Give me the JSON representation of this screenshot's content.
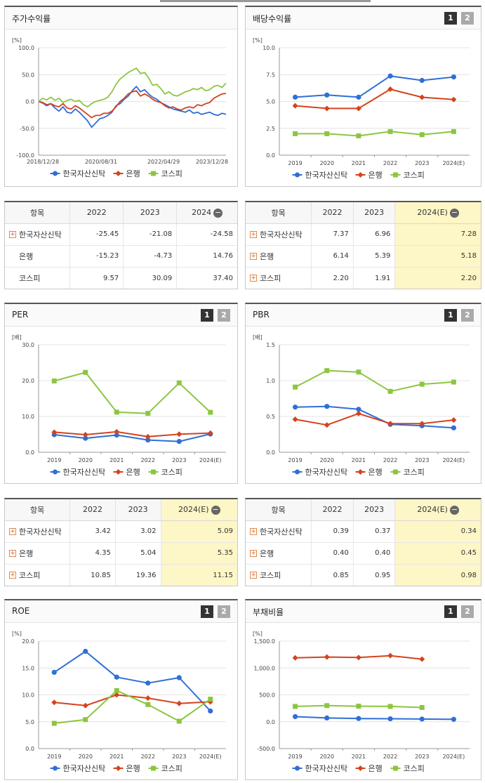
{
  "topbar": {
    "note": ""
  },
  "panels": [
    {
      "id": "p1",
      "title": "주가수익률",
      "unit": "[%]",
      "pages": [],
      "chart_data": {
        "type": "line",
        "title": "주가수익률",
        "ylabel": "[%]",
        "ylim": [
          -100,
          100
        ],
        "yticks": [
          "100.0",
          "50.0",
          "0.0",
          "-50.0",
          "-100.0"
        ],
        "xticks": [
          "2018/12/28",
          "2020/08/31",
          "2022/04/29",
          "2023/12/28"
        ],
        "series": [
          {
            "name": "한국자산신탁",
            "color": "#2f6fd6",
            "values": [
              0,
              -3,
              -8,
              -4,
              -12,
              -18,
              -10,
              -20,
              -22,
              -14,
              -20,
              -28,
              -36,
              -48,
              -40,
              -32,
              -30,
              -26,
              -20,
              -8,
              -4,
              4,
              10,
              20,
              28,
              18,
              22,
              14,
              8,
              4,
              -2,
              -6,
              -10,
              -14,
              -16,
              -18,
              -20,
              -16,
              -22,
              -20,
              -24,
              -22,
              -20,
              -24,
              -26,
              -22,
              -24
            ]
          },
          {
            "name": "은행",
            "color": "#d4431e",
            "values": [
              0,
              -2,
              -6,
              -4,
              -8,
              -10,
              -4,
              -12,
              -14,
              -8,
              -12,
              -18,
              -24,
              -30,
              -26,
              -26,
              -22,
              -22,
              -18,
              -10,
              0,
              6,
              14,
              18,
              20,
              10,
              14,
              10,
              4,
              0,
              -2,
              -8,
              -12,
              -10,
              -14,
              -16,
              -12,
              -10,
              -12,
              -6,
              -8,
              -4,
              -2,
              6,
              10,
              14,
              15
            ]
          },
          {
            "name": "코스피",
            "color": "#8cc63f",
            "values": [
              0,
              6,
              3,
              8,
              2,
              6,
              -2,
              2,
              4,
              0,
              2,
              -6,
              -10,
              -4,
              0,
              2,
              4,
              8,
              18,
              32,
              42,
              48,
              54,
              58,
              62,
              52,
              54,
              44,
              30,
              32,
              24,
              14,
              18,
              12,
              10,
              14,
              18,
              20,
              24,
              22,
              26,
              20,
              22,
              28,
              30,
              26,
              34
            ]
          }
        ]
      }
    },
    {
      "id": "p2",
      "title": "배당수익률",
      "unit": "[%]",
      "pages": [
        "1",
        "2"
      ],
      "chart_data": {
        "type": "line",
        "title": "배당수익률",
        "ylabel": "[%]",
        "ylim": [
          0,
          10
        ],
        "yticks": [
          "10.0",
          "7.5",
          "5.0",
          "2.5",
          "0.0"
        ],
        "categories": [
          "2019",
          "2020",
          "2021",
          "2022",
          "2023",
          "2024(E)"
        ],
        "series": [
          {
            "name": "한국자산신탁",
            "color": "#2f6fd6",
            "values": [
              5.4,
              5.6,
              5.4,
              7.37,
              6.96,
              7.28
            ]
          },
          {
            "name": "은행",
            "color": "#d4431e",
            "values": [
              4.6,
              4.35,
              4.35,
              6.14,
              5.39,
              5.18
            ]
          },
          {
            "name": "코스피",
            "color": "#8cc63f",
            "values": [
              2.0,
              2.0,
              1.8,
              2.2,
              1.91,
              2.2
            ]
          }
        ]
      }
    },
    {
      "id": "p3",
      "title": "PER",
      "unit": "[배]",
      "pages": [
        "1",
        "2"
      ],
      "chart_data": {
        "type": "line",
        "title": "PER",
        "ylabel": "[배]",
        "ylim": [
          0,
          30
        ],
        "yticks": [
          "30.0",
          "20.0",
          "10.0",
          "0.0"
        ],
        "categories": [
          "2019",
          "2020",
          "2021",
          "2022",
          "2023",
          "2024(E)"
        ],
        "series": [
          {
            "name": "한국자산신탁",
            "color": "#2f6fd6",
            "values": [
              4.9,
              3.9,
              4.8,
              3.42,
              3.02,
              5.09
            ]
          },
          {
            "name": "은행",
            "color": "#d4431e",
            "values": [
              5.6,
              4.9,
              5.7,
              4.35,
              5.04,
              5.35
            ]
          },
          {
            "name": "코스피",
            "color": "#8cc63f",
            "values": [
              19.9,
              22.3,
              11.2,
              10.85,
              19.36,
              11.15
            ]
          }
        ]
      }
    },
    {
      "id": "p4",
      "title": "PBR",
      "unit": "[배]",
      "pages": [
        "1",
        "2"
      ],
      "chart_data": {
        "type": "line",
        "title": "PBR",
        "ylabel": "[배]",
        "ylim": [
          0,
          1.5
        ],
        "yticks": [
          "1.5",
          "1.0",
          "0.5",
          "0.0"
        ],
        "categories": [
          "2019",
          "2020",
          "2021",
          "2022",
          "2023",
          "2024(E)"
        ],
        "series": [
          {
            "name": "한국자산신탁",
            "color": "#2f6fd6",
            "values": [
              0.63,
              0.64,
              0.6,
              0.39,
              0.37,
              0.34
            ]
          },
          {
            "name": "은행",
            "color": "#d4431e",
            "values": [
              0.46,
              0.38,
              0.54,
              0.4,
              0.4,
              0.45
            ]
          },
          {
            "name": "코스피",
            "color": "#8cc63f",
            "values": [
              0.91,
              1.14,
              1.12,
              0.85,
              0.95,
              0.98
            ]
          }
        ]
      }
    },
    {
      "id": "p5",
      "title": "ROE",
      "unit": "[%]",
      "pages": [
        "1",
        "2"
      ],
      "chart_data": {
        "type": "line",
        "title": "ROE",
        "ylabel": "[%]",
        "ylim": [
          0,
          20
        ],
        "yticks": [
          "20.0",
          "15.0",
          "10.0",
          "5.0",
          "0.0"
        ],
        "categories": [
          "2019",
          "2020",
          "2021",
          "2022",
          "2023",
          "2024(E)"
        ],
        "series": [
          {
            "name": "한국자산신탁",
            "color": "#2f6fd6",
            "values": [
              14.2,
              18.1,
              13.3,
              12.2,
              13.2,
              7.0
            ]
          },
          {
            "name": "은행",
            "color": "#d4431e",
            "values": [
              8.6,
              8.0,
              10.0,
              9.4,
              8.4,
              8.7
            ]
          },
          {
            "name": "코스피",
            "color": "#8cc63f",
            "values": [
              4.7,
              5.4,
              10.8,
              8.2,
              5.1,
              9.2
            ]
          }
        ]
      }
    },
    {
      "id": "p6",
      "title": "부채비율",
      "unit": "[%]",
      "pages": [
        "1",
        "2"
      ],
      "chart_data": {
        "type": "line",
        "title": "부채비율",
        "ylabel": "[%]",
        "ylim": [
          -500,
          1500
        ],
        "yticks": [
          "1,500.0",
          "1,000.0",
          "500.0",
          "0.0",
          "-500.0"
        ],
        "categories": [
          "2019",
          "2020",
          "2021",
          "2022",
          "2023",
          "2024(E)"
        ],
        "series": [
          {
            "name": "한국자산신탁",
            "color": "#2f6fd6",
            "values": [
              95,
              70,
              60,
              55,
              50,
              45
            ]
          },
          {
            "name": "은행",
            "color": "#d4431e",
            "values": [
              1190,
              1205,
              1195,
              1230,
              1165,
              null
            ]
          },
          {
            "name": "코스피",
            "color": "#8cc63f",
            "values": [
              285,
              300,
              290,
              285,
              265,
              null
            ]
          }
        ]
      }
    }
  ],
  "tables": [
    {
      "id": "t1",
      "headers": [
        "항목",
        "2022",
        "2023",
        "2024"
      ],
      "minus": true,
      "hlLast": false,
      "rows": [
        {
          "name": "한국자산신탁",
          "plus": true,
          "vals": [
            "-25.45",
            "-21.08",
            "-24.58"
          ]
        },
        {
          "name": "은행",
          "plus": false,
          "vals": [
            "-15.23",
            "-4.73",
            "14.76"
          ]
        },
        {
          "name": "코스피",
          "plus": false,
          "vals": [
            "9.57",
            "30.09",
            "37.40"
          ]
        }
      ]
    },
    {
      "id": "t2",
      "headers": [
        "항목",
        "2022",
        "2023",
        "2024(E)"
      ],
      "minus": true,
      "hlLast": true,
      "rows": [
        {
          "name": "한국자산신탁",
          "plus": true,
          "vals": [
            "7.37",
            "6.96",
            "7.28"
          ]
        },
        {
          "name": "은행",
          "plus": true,
          "vals": [
            "6.14",
            "5.39",
            "5.18"
          ]
        },
        {
          "name": "코스피",
          "plus": true,
          "vals": [
            "2.20",
            "1.91",
            "2.20"
          ]
        }
      ]
    },
    {
      "id": "t3",
      "headers": [
        "항목",
        "2022",
        "2023",
        "2024(E)"
      ],
      "minus": true,
      "hlLast": true,
      "rows": [
        {
          "name": "한국자산신탁",
          "plus": true,
          "vals": [
            "3.42",
            "3.02",
            "5.09"
          ]
        },
        {
          "name": "은행",
          "plus": true,
          "vals": [
            "4.35",
            "5.04",
            "5.35"
          ]
        },
        {
          "name": "코스피",
          "plus": true,
          "vals": [
            "10.85",
            "19.36",
            "11.15"
          ]
        }
      ]
    },
    {
      "id": "t4",
      "headers": [
        "항목",
        "2022",
        "2023",
        "2024(E)"
      ],
      "minus": true,
      "hlLast": true,
      "rows": [
        {
          "name": "한국자산신탁",
          "plus": true,
          "vals": [
            "0.39",
            "0.37",
            "0.34"
          ]
        },
        {
          "name": "은행",
          "plus": true,
          "vals": [
            "0.40",
            "0.40",
            "0.45"
          ]
        },
        {
          "name": "코스피",
          "plus": true,
          "vals": [
            "0.85",
            "0.95",
            "0.98"
          ]
        }
      ]
    }
  ]
}
